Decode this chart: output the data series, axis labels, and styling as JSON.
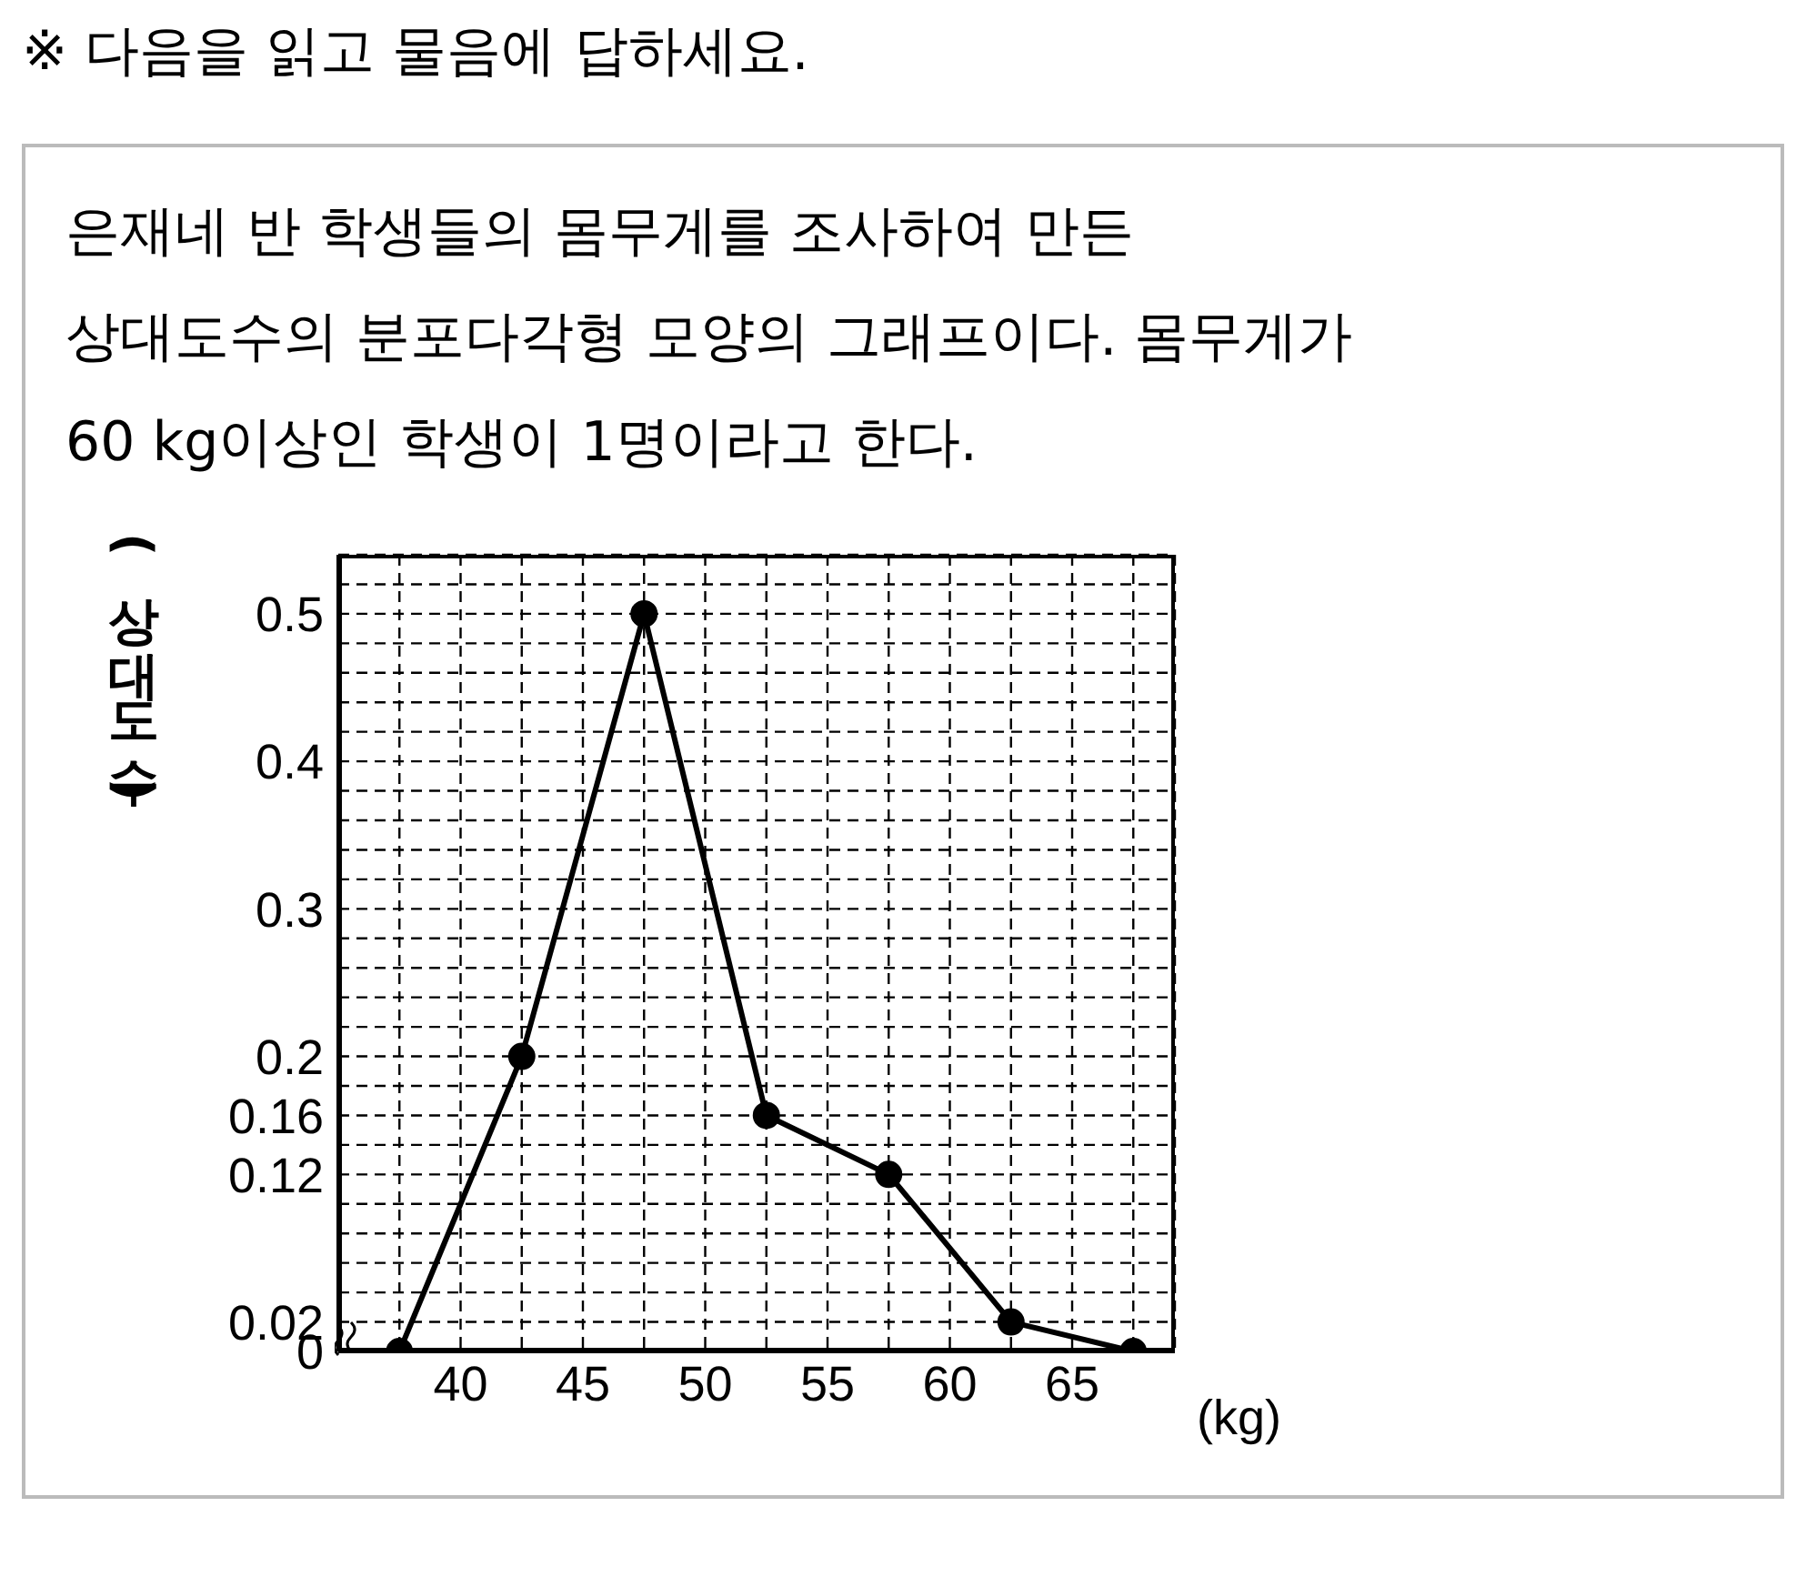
{
  "chart_data": {
    "type": "line",
    "title": "※ 다음을 읽고 물음에 답하세요.",
    "subtitle": "은재네 반 학생들의 몸무게를 조사하여 만든\n상대도수의 분포다각형 모양의 그래프이다. 몸무게가\n60 kg이상인 학생이 1명이라고 한다.",
    "xlabel": "(kg)",
    "ylabel": "(상대도수)",
    "x": [
      37.5,
      42.5,
      47.5,
      52.5,
      57.5,
      62.5,
      67.5
    ],
    "values": [
      0,
      0.2,
      0.5,
      0.16,
      0.12,
      0.02,
      0
    ],
    "color": "#000000",
    "marker": "circle",
    "line_style": "solid",
    "grid": true,
    "xlim": [
      35,
      69.2
    ],
    "xticks": [
      {
        "value": 35,
        "label": null
      },
      {
        "value": 37.5,
        "label": null
      },
      40,
      {
        "value": 42.5,
        "label": null
      },
      45,
      {
        "value": 47.5,
        "label": null
      },
      50,
      {
        "value": 52.5,
        "label": null
      },
      55,
      {
        "value": 57.5,
        "label": null
      },
      60,
      {
        "value": 62.5,
        "label": null
      },
      65,
      {
        "value": 67.5,
        "label": null
      }
    ],
    "ylim": [
      0,
      0.54
    ],
    "yticks": [
      0,
      0.02,
      {
        "value": 0.04,
        "label": null
      },
      {
        "value": 0.06,
        "label": null
      },
      {
        "value": 0.08,
        "label": null
      },
      {
        "value": 0.1,
        "label": null
      },
      0.12,
      {
        "value": 0.14,
        "label": null
      },
      0.16,
      {
        "value": 0.18,
        "label": null
      },
      0.2,
      {
        "value": 0.22,
        "label": null
      },
      {
        "value": 0.24,
        "label": null
      },
      {
        "value": 0.26,
        "label": null
      },
      {
        "value": 0.28,
        "label": null
      },
      0.3,
      {
        "value": 0.32,
        "label": null
      },
      {
        "value": 0.34,
        "label": null
      },
      {
        "value": 0.36,
        "label": null
      },
      {
        "value": 0.38,
        "label": null
      },
      0.4,
      {
        "value": 0.42,
        "label": null
      },
      {
        "value": 0.44,
        "label": null
      },
      {
        "value": 0.46,
        "label": null
      },
      {
        "value": 0.48,
        "label": null
      },
      0.5,
      {
        "value": 0.52,
        "label": null
      }
    ]
  }
}
